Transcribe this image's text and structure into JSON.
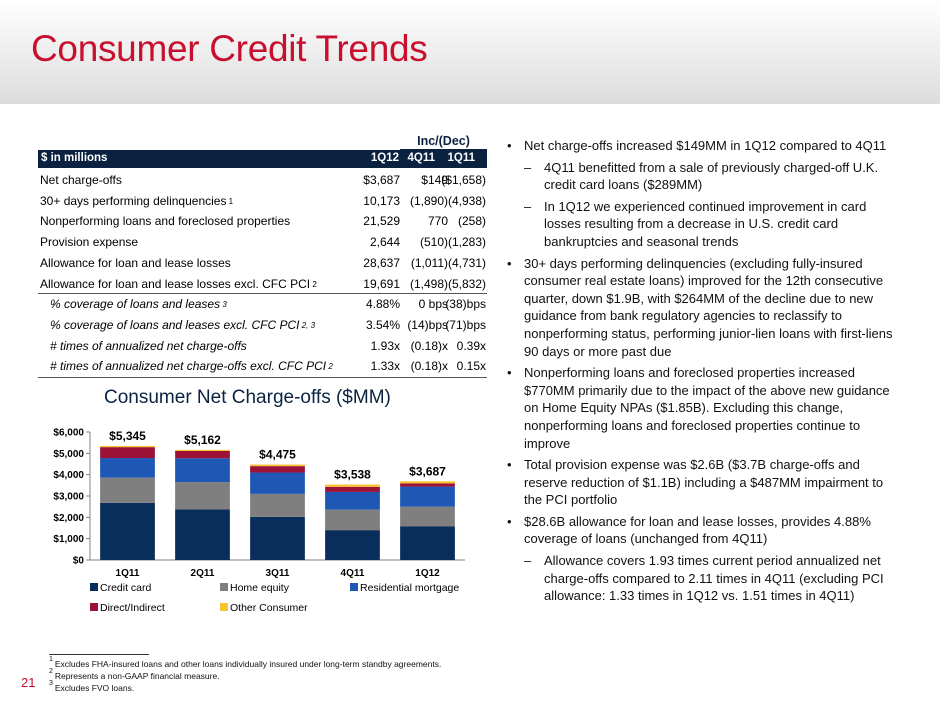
{
  "title": "Consumer Credit Trends",
  "table": {
    "group_header": "Inc/(Dec)",
    "header": {
      "label": "$ in millions",
      "col1": "1Q12",
      "col2": "4Q11",
      "col3": "1Q11"
    },
    "rows": [
      {
        "label": "Net charge-offs",
        "sup": "",
        "v1": "$3,687",
        "v2": "$149",
        "v3": "($1,658)"
      },
      {
        "label": "30+ days performing delinquencies",
        "sup": "1",
        "v1": "10,173",
        "v2": "(1,890)",
        "v3": "(4,938)"
      },
      {
        "label": "Nonperforming loans and foreclosed properties",
        "sup": "",
        "v1": "21,529",
        "v2": "770",
        "v3": "(258)"
      },
      {
        "label": "Provision expense",
        "sup": "",
        "v1": "2,644",
        "v2": "(510)",
        "v3": "(1,283)"
      },
      {
        "label": "Allowance for loan and lease losses",
        "sup": "",
        "v1": "28,637",
        "v2": "(1,011)",
        "v3": "(4,731)"
      },
      {
        "label": "Allowance for loan and lease losses excl. CFC PCI",
        "sup": "2",
        "v1": "19,691",
        "v2": "(1,498)",
        "v3": "(5,832)"
      },
      {
        "label": "% coverage of loans and leases",
        "sup": "3",
        "v1": "4.88%",
        "v2": "0 bps",
        "v3": "(38)bps"
      },
      {
        "label": "% coverage of loans and leases excl. CFC PCI",
        "sup": "2, 3",
        "v1": "3.54%",
        "v2": "(14)bps",
        "v3": "(71)bps"
      },
      {
        "label": "# times of annualized net charge-offs",
        "sup": "",
        "v1": "1.93x",
        "v2": "(0.18)x",
        "v3": "0.39x"
      },
      {
        "label": "# times of annualized net charge-offs excl. CFC PCI",
        "sup": "2",
        "v1": "1.33x",
        "v2": "(0.18)x",
        "v3": "0.15x"
      }
    ]
  },
  "chart_data": {
    "type": "bar",
    "stacked": true,
    "title": "Consumer Net Charge-offs ($MM)",
    "categories": [
      "1Q11",
      "2Q11",
      "3Q11",
      "4Q11",
      "1Q12"
    ],
    "series": [
      {
        "name": "Credit card",
        "color": "#0a2e5c",
        "values": [
          2680,
          2370,
          2020,
          1400,
          1570
        ]
      },
      {
        "name": "Home equity",
        "color": "#7f7f7f",
        "values": [
          1180,
          1280,
          1080,
          960,
          930
        ]
      },
      {
        "name": "Residential mortgage",
        "color": "#1f57b5",
        "values": [
          920,
          1120,
          1000,
          830,
          940
        ]
      },
      {
        "name": "Direct/Indirect",
        "color": "#9c1239",
        "values": [
          510,
          340,
          300,
          240,
          150
        ]
      },
      {
        "name": "Other Consumer",
        "color": "#f6c32c",
        "values": [
          55,
          52,
          75,
          108,
          97
        ]
      }
    ],
    "totals": [
      "$5,345",
      "$5,162",
      "$4,475",
      "$3,538",
      "$3,687"
    ],
    "yticks": [
      "$0",
      "$1,000",
      "$2,000",
      "$3,000",
      "$4,000",
      "$5,000",
      "$6,000"
    ],
    "ylim": [
      0,
      6000
    ],
    "legend_position": "bottom"
  },
  "bullets": [
    {
      "level": 1,
      "text": "Net charge-offs increased $149MM in 1Q12 compared to 4Q11"
    },
    {
      "level": 2,
      "text": "4Q11 benefitted from a sale of previously charged-off U.K. credit card loans ($289MM)"
    },
    {
      "level": 2,
      "text": "In 1Q12 we experienced continued improvement in card losses resulting from a decrease in U.S. credit card bankruptcies and seasonal trends"
    },
    {
      "level": 1,
      "text": "30+ days performing delinquencies (excluding fully-insured consumer real estate loans) improved for the 12th consecutive quarter, down $1.9B, with $264MM of the decline due to new guidance from bank regulatory agencies to reclassify to nonperforming status, performing junior-lien loans with first-liens 90 days or more past due"
    },
    {
      "level": 1,
      "text": "Nonperforming loans and foreclosed properties increased $770MM primarily due to the impact of the above new guidance on Home Equity NPAs ($1.85B). Excluding this change, nonperforming loans and foreclosed properties continue to improve"
    },
    {
      "level": 1,
      "text": "Total provision expense was $2.6B ($3.7B charge-offs and reserve reduction of $1.1B) including a $487MM impairment to the PCI portfolio"
    },
    {
      "level": 1,
      "text": "$28.6B allowance for loan and lease losses, provides 4.88% coverage of loans (unchanged from 4Q11)"
    },
    {
      "level": 2,
      "text": "Allowance covers 1.93 times current period annualized net charge-offs compared to 2.11 times in 4Q11 (excluding PCI allowance: 1.33 times in 1Q12 vs. 1.51 times in 4Q11)"
    }
  ],
  "bullet_markers": {
    "level1": "•",
    "level2": "–"
  },
  "footnotes": [
    {
      "num": "1",
      "text": "Excludes FHA-insured loans and other loans individually insured under long-term standby agreements."
    },
    {
      "num": "2",
      "text": "Represents a non-GAAP financial measure."
    },
    {
      "num": "3",
      "text": "Excludes FVO loans."
    }
  ],
  "page_number": "21"
}
